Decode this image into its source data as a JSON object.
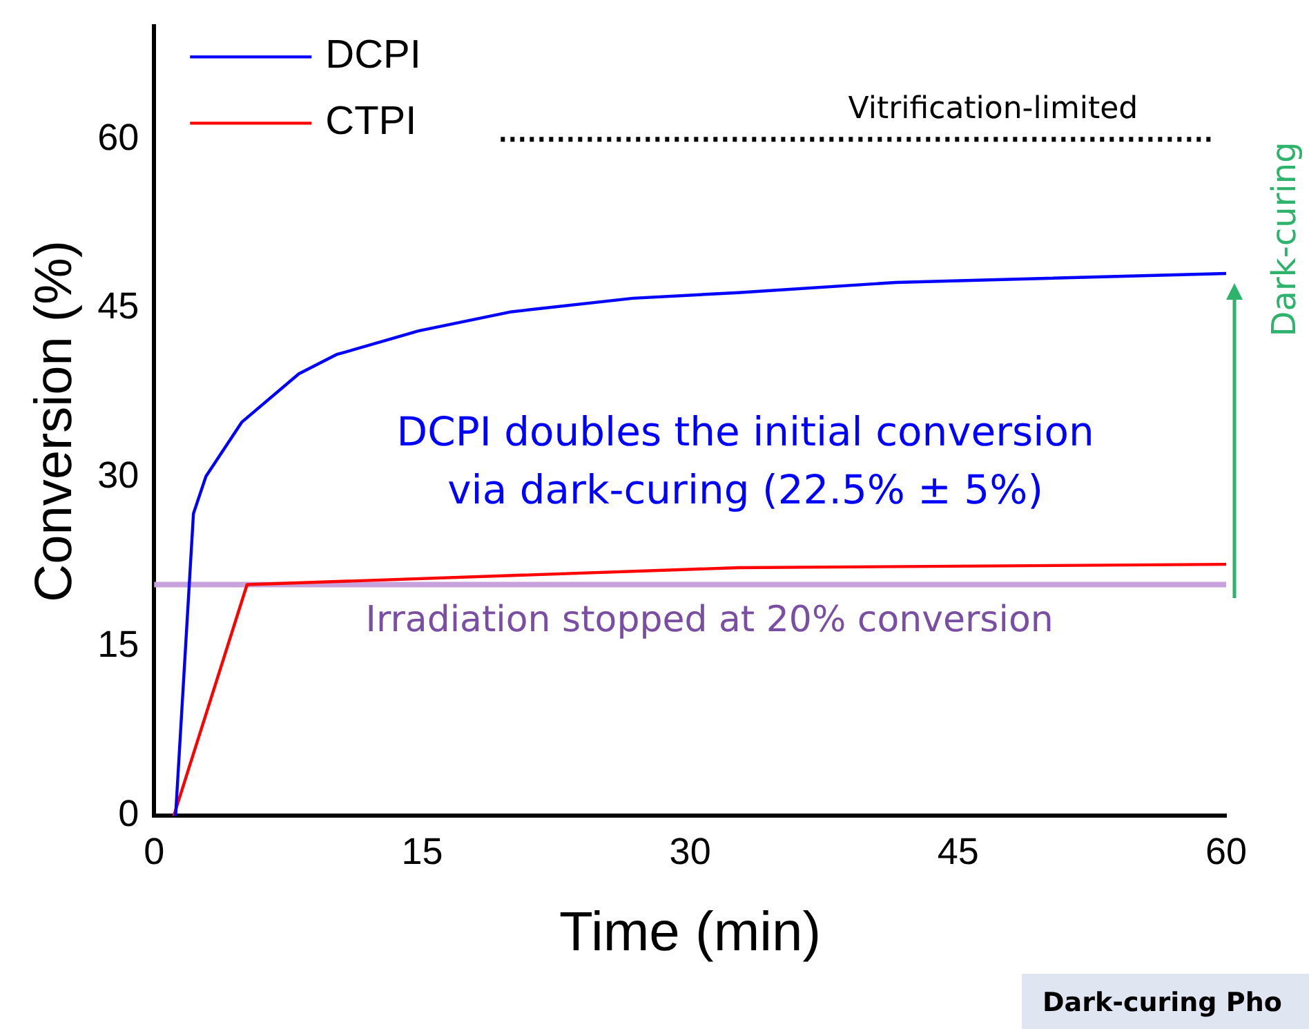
{
  "chart_data": {
    "type": "line",
    "xlabel": "Time (min)",
    "ylabel": "Conversion (%)",
    "xlim": [
      0,
      60
    ],
    "xticks": [
      0,
      15,
      30,
      45,
      60
    ],
    "ylim": [
      0,
      70
    ],
    "yticks": [
      0,
      15,
      30,
      45,
      60
    ],
    "grid": false,
    "legend": "top left",
    "marker": "none",
    "line_style": "solid",
    "series": [
      {
        "name": "DCPI",
        "color": "#0000ff",
        "x": [
          1.2,
          2.2,
          2.9,
          4.9,
          8.1,
          10.2,
          14.8,
          20,
          26.8,
          32.7,
          41.5,
          60
        ],
        "values": [
          0,
          26.8,
          30.1,
          34.9,
          39.2,
          40.9,
          43,
          44.7,
          45.9,
          46.4,
          47.3,
          48.1
        ]
      },
      {
        "name": "CTPI",
        "color": "#ff0000",
        "x": [
          1.1,
          5.2,
          32.7,
          60
        ],
        "values": [
          0,
          20.5,
          22,
          22.3
        ]
      },
      {
        "color": "#000000",
        "line_style": "dotted",
        "x": [
          19.4,
          59.4
        ],
        "values": [
          60,
          60
        ]
      }
    ],
    "ref_lines": [
      {
        "axis": "y",
        "value": 20.5,
        "label": "Irradiation stopped at 20% conversion",
        "color": "#c8a2dc"
      }
    ],
    "annotations": [
      {
        "text": "Vitrification-limited",
        "x": 40,
        "y": 60
      },
      "DCPI doubles the initial conversion\nvia dark-curing (22.5% ± 5%)",
      "Dark-curing",
      "Dark-curing Pho"
    ]
  }
}
